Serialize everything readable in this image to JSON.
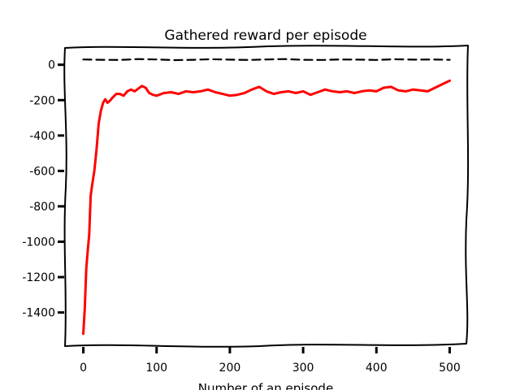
{
  "chart_data": {
    "type": "line",
    "title": "Gathered reward per episode",
    "xlabel": "Number of an episode",
    "ylabel": "",
    "xlim": [
      -25,
      525
    ],
    "ylim": [
      -1590,
      95
    ],
    "xticks": [
      0,
      100,
      200,
      300,
      400,
      500
    ],
    "yticks": [
      0,
      -200,
      -400,
      -600,
      -800,
      -1000,
      -1200,
      -1400
    ],
    "grid": false,
    "style": "xkcd",
    "series": [
      {
        "color": "#ff0000",
        "linestyle": "solid",
        "x": [
          0,
          2,
          4,
          6,
          8,
          10,
          12,
          15,
          18,
          21,
          24,
          27,
          30,
          33,
          36,
          40,
          45,
          50,
          55,
          60,
          65,
          70,
          75,
          80,
          85,
          90,
          95,
          100,
          110,
          120,
          130,
          140,
          150,
          160,
          170,
          180,
          190,
          200,
          210,
          220,
          230,
          240,
          250,
          260,
          270,
          280,
          290,
          300,
          310,
          320,
          330,
          340,
          350,
          360,
          370,
          380,
          390,
          400,
          410,
          420,
          430,
          440,
          450,
          460,
          470,
          480,
          490,
          500
        ],
        "values": [
          -1520,
          -1380,
          -1150,
          -1050,
          -960,
          -740,
          -680,
          -600,
          -480,
          -330,
          -260,
          -215,
          -195,
          -215,
          -205,
          -185,
          -165,
          -165,
          -175,
          -150,
          -140,
          -150,
          -135,
          -120,
          -130,
          -160,
          -170,
          -175,
          -160,
          -155,
          -165,
          -150,
          -155,
          -150,
          -140,
          -155,
          -165,
          -175,
          -170,
          -160,
          -140,
          -125,
          -150,
          -165,
          -155,
          -150,
          -160,
          -150,
          -170,
          -155,
          -140,
          -150,
          -155,
          -150,
          -160,
          -150,
          -145,
          -150,
          -130,
          -125,
          -145,
          -150,
          -140,
          -145,
          -150,
          -130,
          -110,
          -90
        ]
      },
      {
        "color": "#000000",
        "linestyle": "dashed",
        "x": [
          0,
          25,
          50,
          75,
          100,
          125,
          150,
          175,
          200,
          225,
          250,
          275,
          300,
          325,
          350,
          375,
          400,
          425,
          450,
          475,
          500
        ],
        "values": [
          30,
          28,
          27,
          32,
          30,
          26,
          28,
          31,
          29,
          27,
          30,
          32,
          28,
          27,
          30,
          29,
          27,
          31,
          29,
          30,
          28
        ]
      }
    ]
  }
}
